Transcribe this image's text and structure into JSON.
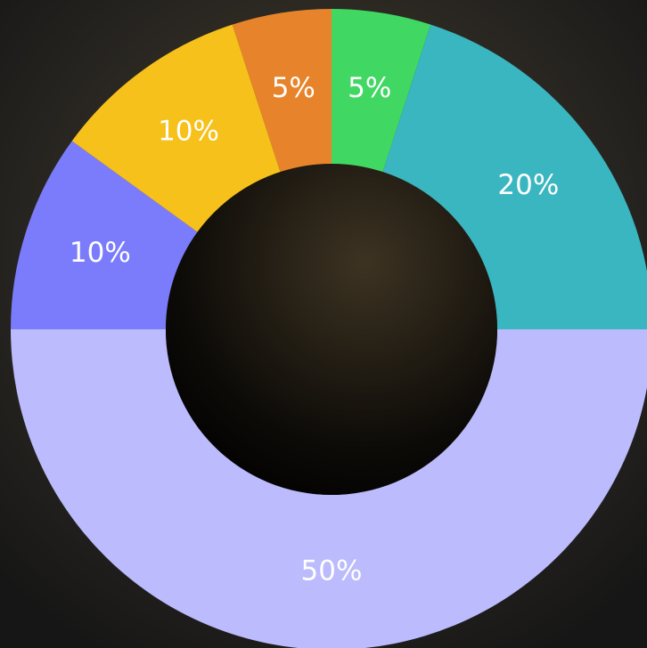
{
  "chart_data": {
    "type": "donut",
    "values": [
      5,
      20,
      50,
      10,
      10,
      5
    ],
    "value_labels": [
      "5%",
      "20%",
      "50%",
      "10%",
      "10%",
      "5%"
    ],
    "colors": [
      "#41d763",
      "#3ab6c1",
      "#bbbbfd",
      "#7b7cfb",
      "#f6c11b",
      "#e7842b"
    ]
  }
}
